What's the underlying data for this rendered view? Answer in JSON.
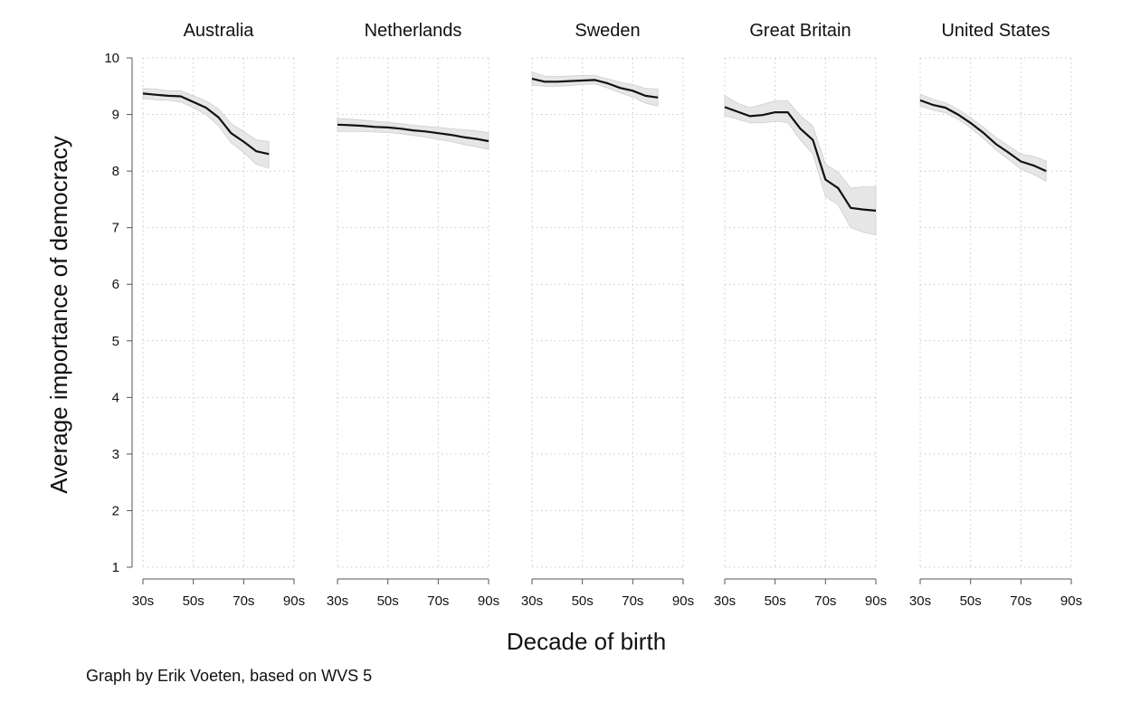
{
  "credit": "Graph by Erik Voeten, based on WVS 5",
  "chart_data": {
    "type": "line",
    "xlabel": "Decade of birth",
    "ylabel": "Average importance of democracy",
    "ylim": [
      1,
      10
    ],
    "yticks": [
      1,
      2,
      3,
      4,
      5,
      6,
      7,
      8,
      9,
      10
    ],
    "xlim": [
      1930,
      1990
    ],
    "xticks": [
      1930,
      1950,
      1970,
      1990
    ],
    "xtick_labels": [
      "30s",
      "50s",
      "70s",
      "90s"
    ],
    "grid": true,
    "confidence_band": true,
    "panels": [
      {
        "name": "Australia",
        "x": [
          1930,
          1935,
          1940,
          1945,
          1950,
          1955,
          1960,
          1965,
          1970,
          1975,
          1980
        ],
        "y": [
          9.37,
          9.35,
          9.33,
          9.32,
          9.22,
          9.12,
          8.95,
          8.67,
          8.52,
          8.35,
          8.3
        ],
        "lower": [
          9.28,
          9.26,
          9.25,
          9.22,
          9.12,
          9.0,
          8.8,
          8.5,
          8.33,
          8.12,
          8.05
        ],
        "upper": [
          9.46,
          9.45,
          9.42,
          9.42,
          9.33,
          9.24,
          9.1,
          8.84,
          8.7,
          8.55,
          8.52
        ]
      },
      {
        "name": "Netherlands",
        "x": [
          1930,
          1935,
          1940,
          1945,
          1950,
          1955,
          1960,
          1965,
          1970,
          1975,
          1980,
          1985,
          1990
        ],
        "y": [
          8.82,
          8.81,
          8.8,
          8.78,
          8.77,
          8.75,
          8.72,
          8.7,
          8.67,
          8.64,
          8.6,
          8.57,
          8.53
        ],
        "lower": [
          8.7,
          8.7,
          8.7,
          8.69,
          8.68,
          8.66,
          8.63,
          8.6,
          8.56,
          8.52,
          8.47,
          8.43,
          8.38
        ],
        "upper": [
          8.93,
          8.92,
          8.9,
          8.88,
          8.86,
          8.84,
          8.81,
          8.79,
          8.77,
          8.75,
          8.73,
          8.71,
          8.68
        ]
      },
      {
        "name": "Sweden",
        "x": [
          1930,
          1935,
          1940,
          1945,
          1950,
          1955,
          1960,
          1965,
          1970,
          1975,
          1980
        ],
        "y": [
          9.63,
          9.58,
          9.58,
          9.59,
          9.6,
          9.61,
          9.55,
          9.47,
          9.42,
          9.33,
          9.3
        ],
        "lower": [
          9.52,
          9.5,
          9.5,
          9.51,
          9.53,
          9.54,
          9.47,
          9.38,
          9.31,
          9.2,
          9.15
        ],
        "upper": [
          9.75,
          9.68,
          9.67,
          9.68,
          9.69,
          9.69,
          9.63,
          9.57,
          9.53,
          9.46,
          9.45
        ]
      },
      {
        "name": "Great Britain",
        "x": [
          1930,
          1935,
          1940,
          1945,
          1950,
          1955,
          1960,
          1965,
          1970,
          1975,
          1980,
          1985,
          1990
        ],
        "y": [
          9.13,
          9.05,
          8.97,
          8.99,
          9.04,
          9.04,
          8.75,
          8.55,
          7.85,
          7.7,
          7.35,
          7.32,
          7.3
        ],
        "lower": [
          8.98,
          8.92,
          8.85,
          8.85,
          8.88,
          8.86,
          8.55,
          8.3,
          7.55,
          7.4,
          7.0,
          6.92,
          6.87
        ],
        "upper": [
          9.33,
          9.2,
          9.12,
          9.18,
          9.24,
          9.24,
          8.98,
          8.8,
          8.12,
          7.98,
          7.7,
          7.72,
          7.72
        ]
      },
      {
        "name": "United States",
        "x": [
          1930,
          1935,
          1940,
          1945,
          1950,
          1955,
          1960,
          1965,
          1970,
          1975,
          1980
        ],
        "y": [
          9.25,
          9.17,
          9.12,
          9.0,
          8.85,
          8.68,
          8.48,
          8.33,
          8.17,
          8.1,
          8.0
        ],
        "lower": [
          9.15,
          9.08,
          9.03,
          8.92,
          8.76,
          8.58,
          8.38,
          8.21,
          8.03,
          7.94,
          7.82
        ],
        "upper": [
          9.36,
          9.27,
          9.21,
          9.09,
          8.94,
          8.78,
          8.6,
          8.45,
          8.3,
          8.26,
          8.18
        ]
      }
    ],
    "colors": {
      "line": "#111111",
      "band": "#e6e6e6",
      "band_edge": "#cfcfcf",
      "grid": "#c8c8c8",
      "axis": "#555555"
    }
  }
}
